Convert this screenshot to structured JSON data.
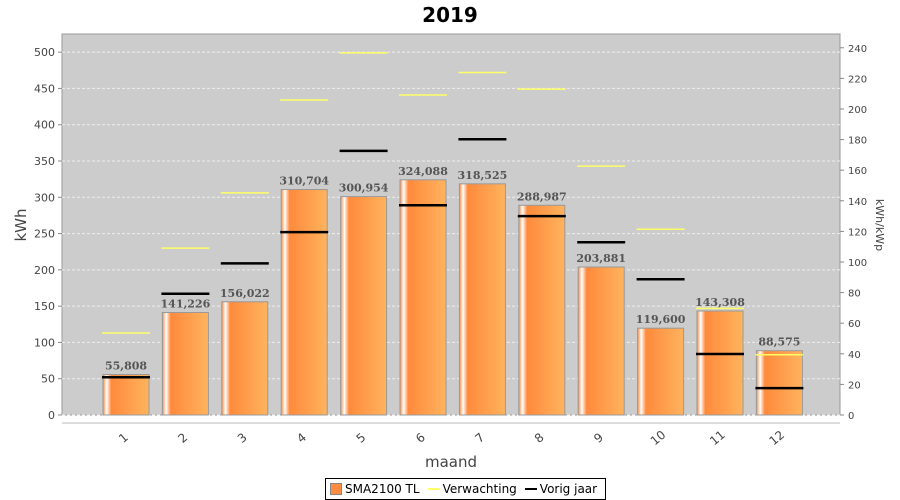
{
  "chart_data": {
    "type": "bar",
    "title": "2019",
    "xlabel": "maand",
    "ylabel": "kWh",
    "y2label": "kWh/kWp",
    "categories": [
      "1",
      "2",
      "3",
      "4",
      "5",
      "6",
      "7",
      "8",
      "9",
      "10",
      "11",
      "12"
    ],
    "ylim": [
      0,
      525
    ],
    "y2lim": [
      0,
      249
    ],
    "yticks": [
      0,
      50,
      100,
      150,
      200,
      250,
      300,
      350,
      400,
      450,
      500
    ],
    "y2ticks": [
      0,
      20,
      40,
      60,
      80,
      100,
      120,
      140,
      160,
      180,
      200,
      220,
      240
    ],
    "grid": true,
    "legend_position": "bottom",
    "series": [
      {
        "name": "SMA2100 TL",
        "kind": "bar",
        "color": "#ff8c40",
        "values": [
          55.808,
          141.226,
          156.022,
          310.704,
          300.954,
          324.088,
          318.525,
          288.987,
          203.881,
          119.6,
          143.308,
          88.575
        ],
        "labels": [
          "55,808",
          "141,226",
          "156,022",
          "310,704",
          "300,954",
          "324,088",
          "318,525",
          "288,987",
          "203,881",
          "119,600",
          "143,308",
          "88,575"
        ]
      },
      {
        "name": "Verwachting",
        "kind": "level",
        "color": "#ffff66",
        "values": [
          113,
          230,
          306,
          434,
          499,
          441,
          472,
          449,
          343,
          256,
          147,
          83
        ]
      },
      {
        "name": "Vorig jaar",
        "kind": "level",
        "color": "#000000",
        "values": [
          52,
          167,
          209,
          252,
          364,
          289,
          380,
          274,
          238,
          187,
          84,
          37
        ]
      }
    ]
  }
}
